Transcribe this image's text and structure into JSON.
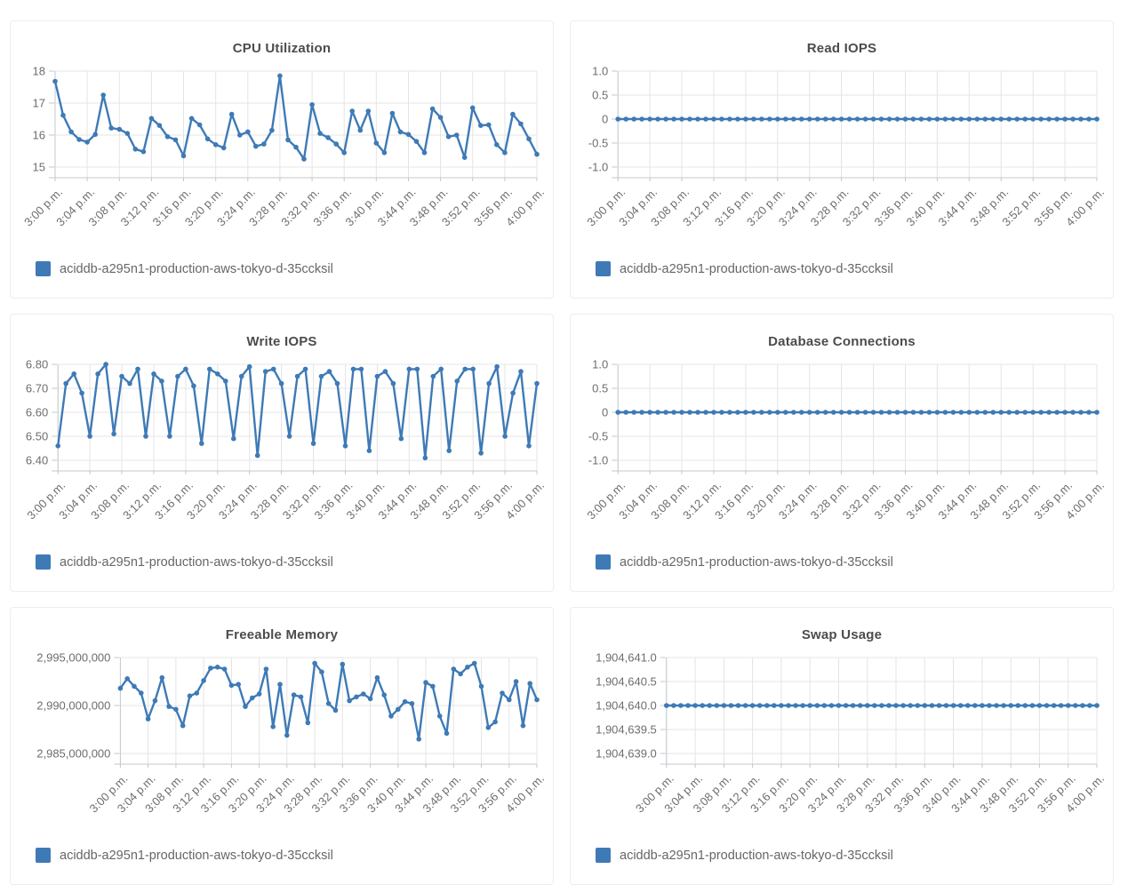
{
  "colors": {
    "accent": "#3e7ab6",
    "grid_line": "#e4e4e4",
    "axis_line": "#c2c8ce",
    "title_text": "#4c4c4c",
    "tick_text": "#6d6d6d",
    "legend_text": "#666666"
  },
  "instance": "aciddb-a295n1-production-aws-tokyo-d-35ccksil",
  "chart_data": [
    {
      "id": "cpu-utilization",
      "type": "line",
      "title": "CPU Utilization",
      "ylim": [
        15,
        18
      ],
      "y_tick_values": [
        18,
        17,
        16,
        15
      ],
      "y_tick_labels": [
        "18",
        "17",
        "16",
        "15"
      ],
      "x_labels": [
        "3:00 p.m.",
        "3:04 p.m.",
        "3:08 p.m.",
        "3:12 p.m.",
        "3:16 p.m.",
        "3:20 p.m.",
        "3:24 p.m.",
        "3:28 p.m.",
        "3:32 p.m.",
        "3:36 p.m.",
        "3:40 p.m.",
        "3:44 p.m.",
        "3:48 p.m.",
        "3:52 p.m.",
        "3:56 p.m.",
        "4:00 p.m."
      ],
      "legend_position": "bottom-left",
      "series": [
        {
          "name": "aciddb-a295n1-production-aws-tokyo-d-35ccksil",
          "color": "#3e7ab6",
          "values": [
            17.68,
            16.62,
            16.1,
            15.86,
            15.78,
            16.02,
            17.25,
            16.22,
            16.18,
            16.05,
            15.56,
            15.48,
            16.52,
            16.3,
            15.95,
            15.85,
            15.35,
            16.52,
            16.32,
            15.88,
            15.7,
            15.6,
            16.65,
            16.0,
            16.1,
            15.65,
            15.72,
            16.15,
            17.85,
            15.85,
            15.62,
            15.25,
            16.95,
            16.05,
            15.92,
            15.72,
            15.45,
            16.75,
            16.15,
            16.75,
            15.75,
            15.45,
            16.68,
            16.1,
            16.02,
            15.8,
            15.45,
            16.82,
            16.55,
            15.95,
            16.0,
            15.3,
            16.85,
            16.3,
            16.32,
            15.7,
            15.45,
            16.65,
            16.35,
            15.88,
            15.4
          ]
        }
      ]
    },
    {
      "id": "read-iops",
      "type": "line",
      "title": "Read IOPS",
      "ylim": [
        -1,
        1
      ],
      "y_tick_values": [
        1,
        0.5,
        0,
        -0.5,
        -1
      ],
      "y_tick_labels": [
        "1.0",
        "0.5",
        "0",
        "-0.5",
        "-1.0"
      ],
      "x_labels": [
        "3:00 p.m.",
        "3:04 p.m.",
        "3:08 p.m.",
        "3:12 p.m.",
        "3:16 p.m.",
        "3:20 p.m.",
        "3:24 p.m.",
        "3:28 p.m.",
        "3:32 p.m.",
        "3:36 p.m.",
        "3:40 p.m.",
        "3:44 p.m.",
        "3:48 p.m.",
        "3:52 p.m.",
        "3:56 p.m.",
        "4:00 p.m."
      ],
      "legend_position": "bottom-left",
      "series": [
        {
          "name": "aciddb-a295n1-production-aws-tokyo-d-35ccksil",
          "color": "#3e7ab6",
          "values": [
            0,
            0,
            0,
            0,
            0,
            0,
            0,
            0,
            0,
            0,
            0,
            0,
            0,
            0,
            0,
            0,
            0,
            0,
            0,
            0,
            0,
            0,
            0,
            0,
            0,
            0,
            0,
            0,
            0,
            0,
            0,
            0,
            0,
            0,
            0,
            0,
            0,
            0,
            0,
            0,
            0,
            0,
            0,
            0,
            0,
            0,
            0,
            0,
            0,
            0,
            0,
            0,
            0,
            0,
            0,
            0,
            0,
            0,
            0,
            0,
            0
          ]
        }
      ]
    },
    {
      "id": "write-iops",
      "type": "line",
      "title": "Write IOPS",
      "ylim": [
        6.4,
        6.8
      ],
      "y_tick_values": [
        6.8,
        6.7,
        6.6,
        6.5,
        6.4
      ],
      "y_tick_labels": [
        "6.80",
        "6.70",
        "6.60",
        "6.50",
        "6.40"
      ],
      "x_labels": [
        "3:00 p.m.",
        "3:04 p.m.",
        "3:08 p.m.",
        "3:12 p.m.",
        "3:16 p.m.",
        "3:20 p.m.",
        "3:24 p.m.",
        "3:28 p.m.",
        "3:32 p.m.",
        "3:36 p.m.",
        "3:40 p.m.",
        "3:44 p.m.",
        "3:48 p.m.",
        "3:52 p.m.",
        "3:56 p.m.",
        "4:00 p.m."
      ],
      "legend_position": "bottom-left",
      "series": [
        {
          "name": "aciddb-a295n1-production-aws-tokyo-d-35ccksil",
          "color": "#3e7ab6",
          "values": [
            6.46,
            6.72,
            6.76,
            6.68,
            6.5,
            6.76,
            6.8,
            6.51,
            6.75,
            6.72,
            6.78,
            6.5,
            6.76,
            6.73,
            6.5,
            6.75,
            6.78,
            6.71,
            6.47,
            6.78,
            6.76,
            6.73,
            6.49,
            6.75,
            6.79,
            6.42,
            6.77,
            6.78,
            6.72,
            6.5,
            6.75,
            6.78,
            6.47,
            6.75,
            6.77,
            6.72,
            6.46,
            6.78,
            6.78,
            6.44,
            6.75,
            6.77,
            6.72,
            6.49,
            6.78,
            6.78,
            6.41,
            6.75,
            6.78,
            6.44,
            6.73,
            6.78,
            6.78,
            6.43,
            6.72,
            6.79,
            6.5,
            6.68,
            6.77,
            6.46,
            6.72
          ]
        }
      ]
    },
    {
      "id": "database-connections",
      "type": "line",
      "title": "Database Connections",
      "ylim": [
        -1,
        1
      ],
      "y_tick_values": [
        1,
        0.5,
        0,
        -0.5,
        -1
      ],
      "y_tick_labels": [
        "1.0",
        "0.5",
        "0",
        "-0.5",
        "-1.0"
      ],
      "x_labels": [
        "3:00 p.m.",
        "3:04 p.m.",
        "3:08 p.m.",
        "3:12 p.m.",
        "3:16 p.m.",
        "3:20 p.m.",
        "3:24 p.m.",
        "3:28 p.m.",
        "3:32 p.m.",
        "3:36 p.m.",
        "3:40 p.m.",
        "3:44 p.m.",
        "3:48 p.m.",
        "3:52 p.m.",
        "3:56 p.m.",
        "4:00 p.m."
      ],
      "legend_position": "bottom-left",
      "series": [
        {
          "name": "aciddb-a295n1-production-aws-tokyo-d-35ccksil",
          "color": "#3e7ab6",
          "values": [
            0,
            0,
            0,
            0,
            0,
            0,
            0,
            0,
            0,
            0,
            0,
            0,
            0,
            0,
            0,
            0,
            0,
            0,
            0,
            0,
            0,
            0,
            0,
            0,
            0,
            0,
            0,
            0,
            0,
            0,
            0,
            0,
            0,
            0,
            0,
            0,
            0,
            0,
            0,
            0,
            0,
            0,
            0,
            0,
            0,
            0,
            0,
            0,
            0,
            0,
            0,
            0,
            0,
            0,
            0,
            0,
            0,
            0,
            0,
            0,
            0
          ]
        }
      ]
    },
    {
      "id": "freeable-memory",
      "type": "line",
      "title": "Freeable Memory",
      "ylim": [
        2985000000,
        2995000000
      ],
      "y_tick_values": [
        2995000000,
        2990000000,
        2985000000
      ],
      "y_tick_labels": [
        "2,995,000,000",
        "2,990,000,000",
        "2,985,000,000"
      ],
      "x_labels": [
        "3:00 p.m.",
        "3:04 p.m.",
        "3:08 p.m.",
        "3:12 p.m.",
        "3:16 p.m.",
        "3:20 p.m.",
        "3:24 p.m.",
        "3:28 p.m.",
        "3:32 p.m.",
        "3:36 p.m.",
        "3:40 p.m.",
        "3:44 p.m.",
        "3:48 p.m.",
        "3:52 p.m.",
        "3:56 p.m.",
        "4:00 p.m."
      ],
      "legend_position": "bottom-left",
      "series": [
        {
          "name": "aciddb-a295n1-production-aws-tokyo-d-35ccksil",
          "color": "#3e7ab6",
          "values": [
            2991800000,
            2992800000,
            2992000000,
            2991300000,
            2988600000,
            2990500000,
            2992900000,
            2989900000,
            2989600000,
            2987900000,
            2991000000,
            2991300000,
            2992600000,
            2993900000,
            2994000000,
            2993800000,
            2992100000,
            2992200000,
            2989900000,
            2990800000,
            2991200000,
            2993800000,
            2987800000,
            2992200000,
            2986900000,
            2991100000,
            2990900000,
            2988200000,
            2994400000,
            2993500000,
            2990200000,
            2989500000,
            2994300000,
            2990500000,
            2990900000,
            2991200000,
            2990700000,
            2992900000,
            2991100000,
            2988900000,
            2989600000,
            2990400000,
            2990200000,
            2986500000,
            2992400000,
            2992000000,
            2988900000,
            2987100000,
            2993800000,
            2993300000,
            2994000000,
            2994400000,
            2992000000,
            2987700000,
            2988300000,
            2991300000,
            2990600000,
            2992500000,
            2987900000,
            2992300000,
            2990600000
          ]
        }
      ]
    },
    {
      "id": "swap-usage",
      "type": "line",
      "title": "Swap Usage",
      "ylim": [
        1904639.0,
        1904641.0
      ],
      "y_tick_values": [
        1904641.0,
        1904640.5,
        1904640.0,
        1904639.5,
        1904639.0
      ],
      "y_tick_labels": [
        "1,904,641.0",
        "1,904,640.5",
        "1,904,640.0",
        "1,904,639.5",
        "1,904,639.0"
      ],
      "x_labels": [
        "3:00 p.m.",
        "3:04 p.m.",
        "3:08 p.m.",
        "3:12 p.m.",
        "3:16 p.m.",
        "3:20 p.m.",
        "3:24 p.m.",
        "3:28 p.m.",
        "3:32 p.m.",
        "3:36 p.m.",
        "3:40 p.m.",
        "3:44 p.m.",
        "3:48 p.m.",
        "3:52 p.m.",
        "3:56 p.m.",
        "4:00 p.m."
      ],
      "legend_position": "bottom-left",
      "series": [
        {
          "name": "aciddb-a295n1-production-aws-tokyo-d-35ccksil",
          "color": "#3e7ab6",
          "values": [
            1904640,
            1904640,
            1904640,
            1904640,
            1904640,
            1904640,
            1904640,
            1904640,
            1904640,
            1904640,
            1904640,
            1904640,
            1904640,
            1904640,
            1904640,
            1904640,
            1904640,
            1904640,
            1904640,
            1904640,
            1904640,
            1904640,
            1904640,
            1904640,
            1904640,
            1904640,
            1904640,
            1904640,
            1904640,
            1904640,
            1904640,
            1904640,
            1904640,
            1904640,
            1904640,
            1904640,
            1904640,
            1904640,
            1904640,
            1904640,
            1904640,
            1904640,
            1904640,
            1904640,
            1904640,
            1904640,
            1904640,
            1904640,
            1904640,
            1904640,
            1904640,
            1904640,
            1904640,
            1904640,
            1904640,
            1904640,
            1904640,
            1904640,
            1904640,
            1904640,
            1904640
          ]
        }
      ]
    }
  ]
}
